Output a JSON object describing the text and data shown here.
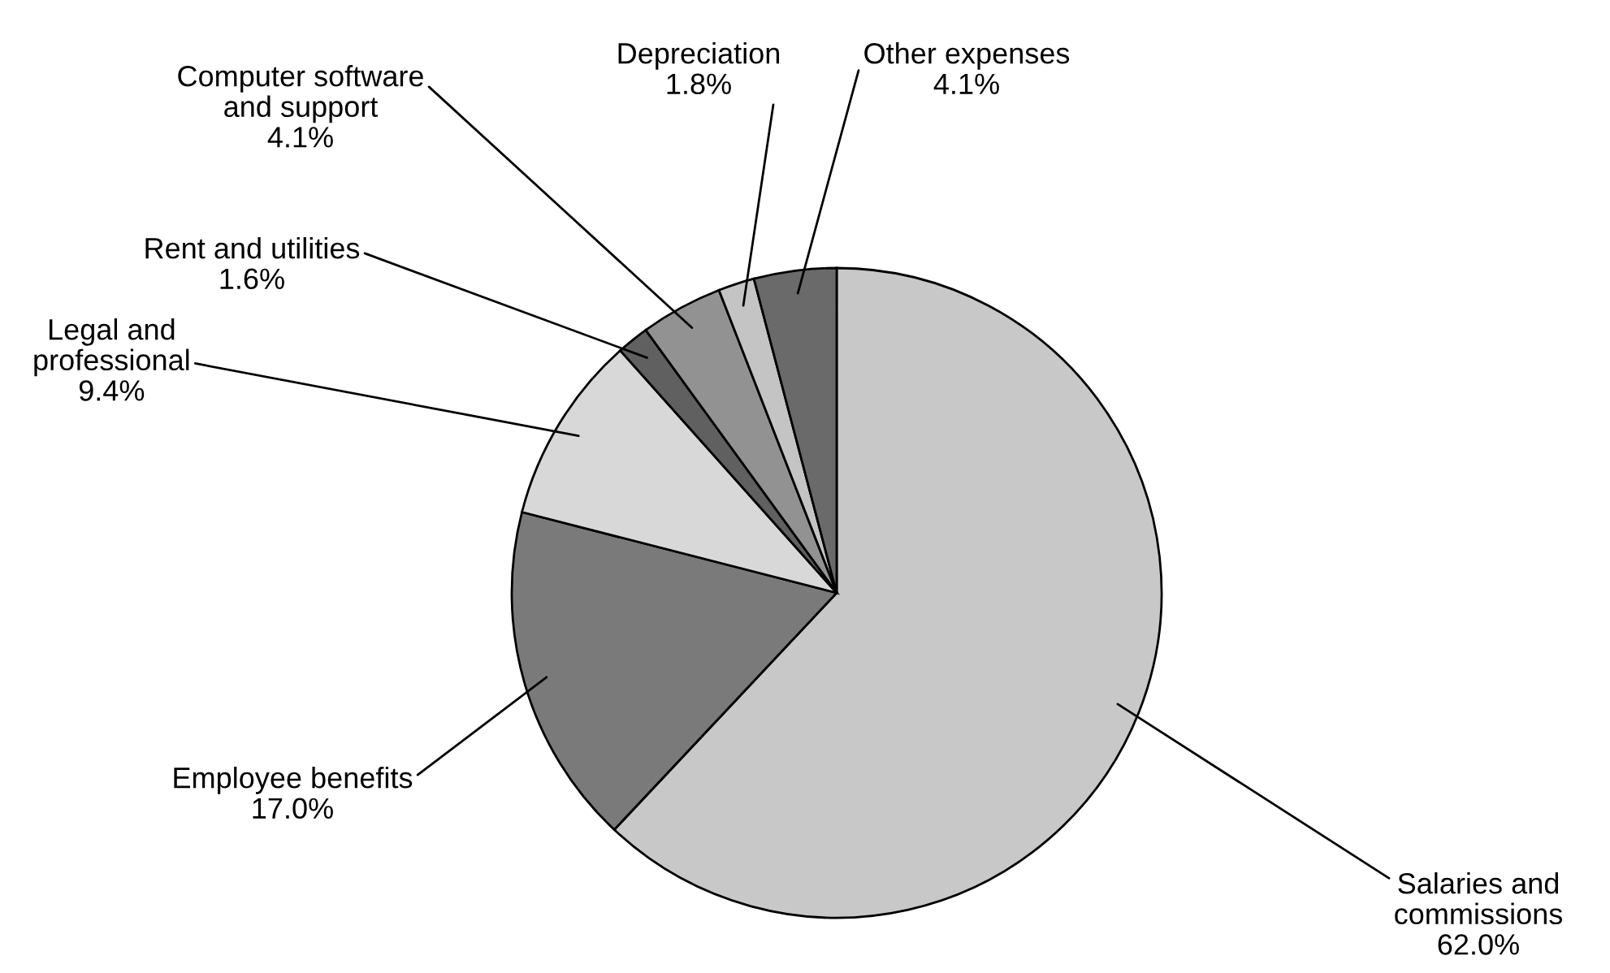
{
  "chart_data": {
    "type": "pie",
    "categories": [
      "Salaries and\ncommissions",
      "Employee benefits",
      "Legal and\nprofessional",
      "Rent and utilities",
      "Computer software\nand support",
      "Depreciation",
      "Other expenses"
    ],
    "values": [
      62.0,
      17.0,
      9.4,
      1.6,
      4.1,
      1.8,
      4.1
    ],
    "value_labels": [
      "62.0%",
      "17.0%",
      "9.4%",
      "1.6%",
      "4.1%",
      "1.8%",
      "4.1%"
    ],
    "colors": [
      "#c8c8c8",
      "#7a7a7a",
      "#d8d8d8",
      "#606060",
      "#929292",
      "#c4c4c4",
      "#6a6a6a"
    ],
    "legend": false
  }
}
